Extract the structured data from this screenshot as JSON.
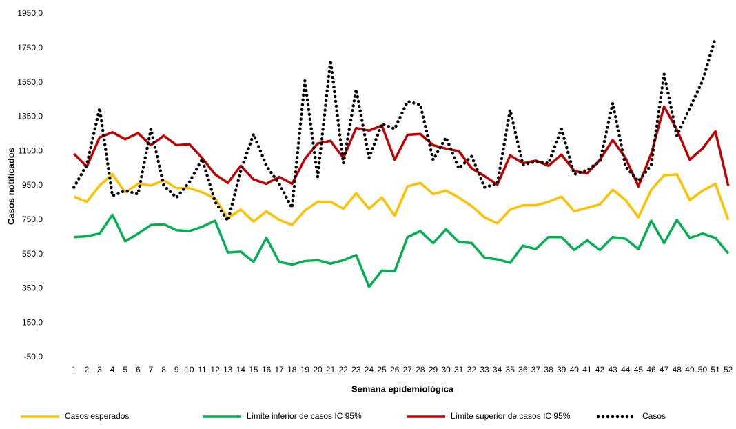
{
  "chart_data": {
    "type": "line",
    "x_label": "Semana epidemiológica",
    "y_label": "Casos notificados",
    "categories": [
      "1",
      "2",
      "3",
      "4",
      "5",
      "6",
      "7",
      "8",
      "9",
      "10",
      "11",
      "12",
      "13",
      "14",
      "15",
      "16",
      "17",
      "18",
      "19",
      "20",
      "21",
      "22",
      "23",
      "24",
      "25",
      "26",
      "27",
      "28",
      "29",
      "30",
      "31",
      "32",
      "33",
      "34",
      "35",
      "36",
      "37",
      "38",
      "39",
      "40",
      "41",
      "42",
      "43",
      "44",
      "45",
      "46",
      "47",
      "48",
      "49",
      "50",
      "51",
      "52"
    ],
    "ylim": [
      -50,
      1950
    ],
    "yticks": [
      {
        "value": -50,
        "label": "-50,0"
      },
      {
        "value": 150,
        "label": "150,0"
      },
      {
        "value": 350,
        "label": "350,0"
      },
      {
        "value": 550,
        "label": "550,0"
      },
      {
        "value": 750,
        "label": "750,0"
      },
      {
        "value": 950,
        "label": "950,0"
      },
      {
        "value": 1150,
        "label": "1150,0"
      },
      {
        "value": 1350,
        "label": "1350,0"
      },
      {
        "value": 1550,
        "label": "1550,0"
      },
      {
        "value": 1750,
        "label": "1750,0"
      },
      {
        "value": 1950,
        "label": "1950,0"
      }
    ],
    "grid": false,
    "legend": "bottom",
    "series": [
      {
        "name": "Casos esperados",
        "color": "#ffc000",
        "line_style": "solid",
        "values": [
          885,
          855,
          950,
          1015,
          910,
          960,
          950,
          980,
          935,
          935,
          910,
          875,
          760,
          810,
          740,
          800,
          750,
          720,
          805,
          855,
          855,
          815,
          905,
          815,
          880,
          775,
          945,
          965,
          900,
          920,
          880,
          830,
          765,
          730,
          810,
          835,
          835,
          855,
          885,
          800,
          820,
          840,
          925,
          865,
          765,
          925,
          1010,
          1015,
          865,
          920,
          960,
          750
        ]
      },
      {
        "name": "Límite inferior de casos IC 95%",
        "color": "#00b050",
        "line_style": "solid",
        "values": [
          650,
          655,
          670,
          780,
          625,
          670,
          720,
          725,
          690,
          685,
          710,
          745,
          560,
          565,
          505,
          645,
          505,
          490,
          510,
          515,
          495,
          515,
          545,
          360,
          455,
          450,
          650,
          685,
          615,
          695,
          620,
          615,
          530,
          520,
          500,
          600,
          580,
          650,
          650,
          575,
          630,
          575,
          650,
          640,
          580,
          745,
          615,
          750,
          645,
          670,
          645,
          555
        ]
      },
      {
        "name": "Límite superior de casos IC 95%",
        "color": "#c00000",
        "line_style": "solid",
        "values": [
          1135,
          1060,
          1230,
          1260,
          1220,
          1255,
          1185,
          1240,
          1185,
          1190,
          1110,
          1015,
          965,
          1065,
          985,
          960,
          1000,
          960,
          1105,
          1195,
          1210,
          1110,
          1285,
          1270,
          1300,
          1100,
          1245,
          1250,
          1185,
          1165,
          1150,
          1050,
          1005,
          955,
          1125,
          1080,
          1095,
          1065,
          1130,
          1035,
          1020,
          1100,
          1215,
          1110,
          945,
          1135,
          1410,
          1275,
          1100,
          1165,
          1265,
          950
        ]
      },
      {
        "name": "Casos",
        "color": "#000000",
        "line_style": "dotted",
        "values": [
          940,
          1070,
          1400,
          890,
          920,
          900,
          1280,
          950,
          880,
          970,
          1105,
          855,
          745,
          1035,
          1250,
          1065,
          960,
          820,
          1560,
          1000,
          1680,
          1080,
          1510,
          1110,
          1310,
          1280,
          1440,
          1420,
          1100,
          1230,
          1050,
          1120,
          940,
          960,
          1390,
          1070,
          1090,
          1080,
          1280,
          1015,
          1040,
          1090,
          1430,
          1060,
          975,
          1070,
          1600,
          1240,
          1400,
          1560,
          1810,
          null
        ]
      }
    ]
  }
}
